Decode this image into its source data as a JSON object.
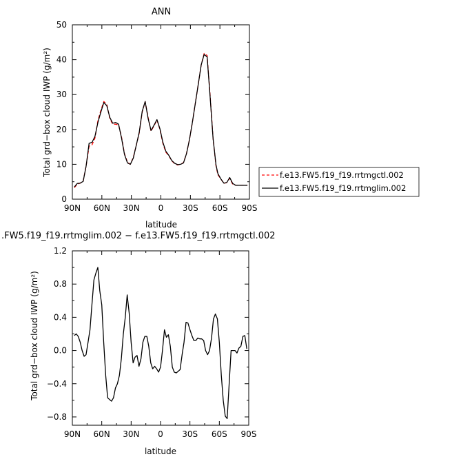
{
  "chart_data": [
    {
      "type": "line",
      "title": "ANN",
      "xlabel": "latitude",
      "ylabel": "Total grd−box cloud IWP (g/m²)",
      "xlim": [
        90,
        -90
      ],
      "ylim": [
        0,
        50
      ],
      "x_tick_labels": [
        "90N",
        "60N",
        "30N",
        "0",
        "30S",
        "60S",
        "90S"
      ],
      "x_ticks": [
        90,
        60,
        30,
        0,
        -30,
        -60,
        -90
      ],
      "y_ticks": [
        0,
        10,
        20,
        30,
        40,
        50
      ],
      "y_tick_labels": [
        "0",
        "10",
        "20",
        "30",
        "40",
        "50"
      ],
      "legend_position": "right",
      "series": [
        {
          "name": "f.e13.FW5.f19_f19.rrtmgctl.002",
          "color": "#ff0000",
          "dash": "dashed",
          "x": [
            88,
            85,
            82,
            79,
            76,
            73,
            70,
            67,
            64,
            61,
            58,
            55,
            52,
            49,
            46,
            43,
            40,
            37,
            34,
            31,
            28,
            25,
            22,
            19,
            16,
            13,
            10,
            7,
            4,
            1,
            -2,
            -5,
            -8,
            -11,
            -14,
            -17,
            -20,
            -23,
            -26,
            -29,
            -32,
            -35,
            -38,
            -41,
            -44,
            -47,
            -50,
            -53,
            -56,
            -58,
            -61,
            -64,
            -67,
            -70,
            -73,
            -76,
            -79,
            -82,
            -85,
            -88
          ],
          "values": [
            3.3,
            4.3,
            4.6,
            5.2,
            9.5,
            15.2,
            15.6,
            17.5,
            22.5,
            25.5,
            28.0,
            27.2,
            23.2,
            21.5,
            21.5,
            21.3,
            17.8,
            13.0,
            10.6,
            10.0,
            12.0,
            15.5,
            19.0,
            25.0,
            28.0,
            23.5,
            19.5,
            21.0,
            22.7,
            20.0,
            16.0,
            13.5,
            12.5,
            11.0,
            10.2,
            9.8,
            10.0,
            10.5,
            13.0,
            17.0,
            22.0,
            27.5,
            33.0,
            38.5,
            41.8,
            41.2,
            30.0,
            17.5,
            9.5,
            7.0,
            5.8,
            4.5,
            4.8,
            6.0,
            4.3,
            4.0,
            4.0,
            4.0,
            4.0,
            4.0
          ]
        },
        {
          "name": "f.e13.FW5.f19_f19.rrtmglim.002",
          "color": "#000000",
          "dash": "solid",
          "x": [
            88,
            85,
            82,
            79,
            76,
            73,
            70,
            67,
            64,
            61,
            58,
            55,
            52,
            49,
            46,
            43,
            40,
            37,
            34,
            31,
            28,
            25,
            22,
            19,
            16,
            13,
            10,
            7,
            4,
            1,
            -2,
            -5,
            -8,
            -11,
            -14,
            -17,
            -20,
            -23,
            -26,
            -29,
            -32,
            -35,
            -38,
            -41,
            -44,
            -47,
            -50,
            -53,
            -56,
            -58,
            -61,
            -64,
            -67,
            -70,
            -73,
            -76,
            -79,
            -82,
            -85,
            -88
          ],
          "values": [
            3.5,
            4.5,
            4.6,
            5.1,
            9.5,
            16.0,
            16.3,
            18.0,
            22.0,
            25.0,
            27.7,
            26.8,
            23.5,
            21.8,
            22.0,
            21.5,
            17.5,
            12.8,
            10.4,
            10.0,
            11.8,
            15.5,
            19.2,
            25.2,
            28.0,
            23.2,
            19.7,
            21.2,
            22.8,
            20.2,
            16.3,
            13.8,
            12.6,
            11.1,
            10.3,
            9.9,
            10.0,
            10.4,
            13.0,
            17.0,
            22.0,
            27.5,
            33.0,
            38.5,
            41.5,
            40.8,
            29.5,
            17.5,
            9.8,
            7.3,
            5.8,
            4.6,
            4.8,
            6.2,
            4.5,
            4.0,
            4.0,
            4.0,
            4.0,
            4.0
          ]
        }
      ]
    },
    {
      "type": "line",
      "title": ".FW5.f19_f19.rrtmglim.002 − f.e13.FW5.f19_f19.rrtmgctl.002",
      "xlabel": "latitude",
      "ylabel": "Total grd−box cloud IWP (g/m²)",
      "xlim": [
        90,
        -90
      ],
      "ylim": [
        -0.9,
        1.2
      ],
      "x_tick_labels": [
        "90N",
        "60N",
        "30N",
        "0",
        "30S",
        "60S",
        "90S"
      ],
      "x_ticks": [
        90,
        60,
        30,
        0,
        -30,
        -60,
        -90
      ],
      "y_ticks": [
        -0.8,
        -0.4,
        0.0,
        0.4,
        0.8,
        1.2
      ],
      "y_tick_labels": [
        "−0.8",
        "−0.4",
        "0.0",
        "0.4",
        "0.8",
        "1.2"
      ],
      "series": [
        {
          "name": "",
          "color": "#000000",
          "dash": "solid",
          "x": [
            88,
            86,
            84,
            82,
            80,
            78,
            76,
            74,
            72,
            70,
            68,
            66,
            64,
            62,
            60,
            58,
            56,
            54,
            52,
            50,
            48,
            46,
            44,
            42,
            40,
            38,
            36,
            34,
            32,
            30,
            28,
            26,
            24,
            22,
            20,
            18,
            16,
            14,
            12,
            10,
            8,
            6,
            4,
            2,
            0,
            -2,
            -4,
            -6,
            -8,
            -10,
            -12,
            -14,
            -16,
            -18,
            -20,
            -22,
            -24,
            -26,
            -28,
            -30,
            -32,
            -34,
            -36,
            -38,
            -40,
            -42,
            -44,
            -46,
            -48,
            -50,
            -52,
            -54,
            -56,
            -58,
            -60,
            -62,
            -64,
            -66,
            -68,
            -70,
            -72,
            -74,
            -76,
            -78,
            -80,
            -82,
            -84,
            -86,
            -88
          ],
          "values": [
            0.18,
            0.2,
            0.17,
            0.1,
            0.0,
            -0.07,
            -0.05,
            0.1,
            0.25,
            0.55,
            0.85,
            0.93,
            1.0,
            0.72,
            0.55,
            0.1,
            -0.3,
            -0.57,
            -0.59,
            -0.61,
            -0.57,
            -0.45,
            -0.4,
            -0.3,
            -0.1,
            0.2,
            0.4,
            0.67,
            0.45,
            0.1,
            -0.15,
            -0.08,
            -0.06,
            -0.19,
            -0.1,
            0.1,
            0.17,
            0.17,
            0.05,
            -0.15,
            -0.22,
            -0.19,
            -0.22,
            -0.26,
            -0.2,
            0.0,
            0.25,
            0.16,
            0.19,
            0.05,
            -0.2,
            -0.26,
            -0.27,
            -0.25,
            -0.23,
            -0.05,
            0.1,
            0.34,
            0.33,
            0.25,
            0.18,
            0.12,
            0.12,
            0.15,
            0.14,
            0.14,
            0.12,
            0.0,
            -0.05,
            0.0,
            0.15,
            0.38,
            0.44,
            0.38,
            0.1,
            -0.3,
            -0.6,
            -0.79,
            -0.82,
            -0.4,
            0.0,
            0.0,
            0.0,
            -0.03,
            0.03,
            0.05,
            0.17,
            0.18,
            0.02
          ]
        }
      ]
    }
  ]
}
